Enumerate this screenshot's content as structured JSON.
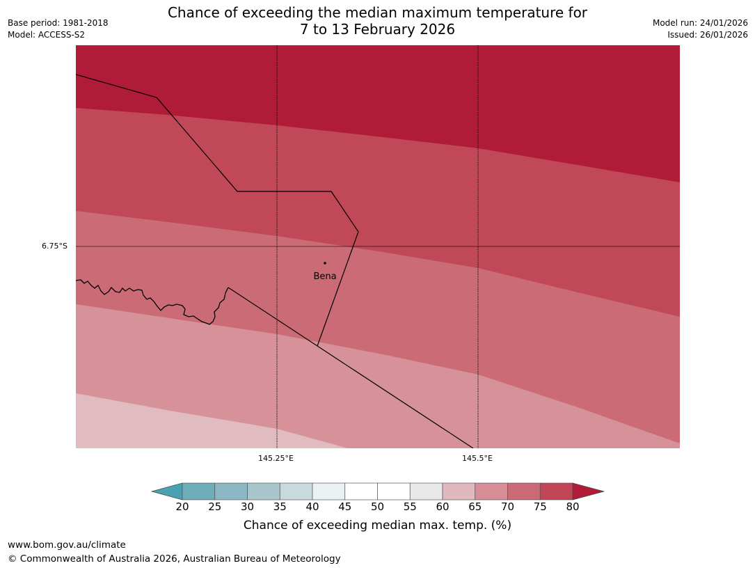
{
  "header": {
    "title_line1": "Chance of exceeding the median maximum temperature for",
    "title_line2": "7 to 13 February 2026",
    "base_period": "Base period: 1981-2018",
    "model": "Model: ACCESS-S2",
    "model_run": "Model run: 24/01/2026",
    "issued": "Issued: 26/01/2026"
  },
  "map": {
    "latitude_label": "6.75°S",
    "longitude_labels": [
      "145.25°E",
      "145.5°E"
    ],
    "place_name": "Bena",
    "colors": {
      "band_80": "#b01c38",
      "band_75": "#c04857",
      "band_70": "#ca6b76",
      "band_65": "#d69199",
      "band_60": "#e0bbbf"
    }
  },
  "colorbar": {
    "ticks": [
      "20",
      "25",
      "30",
      "35",
      "40",
      "45",
      "50",
      "55",
      "60",
      "65",
      "70",
      "75",
      "80"
    ],
    "segment_colors": [
      "#6eaebb",
      "#8bb8c4",
      "#a8c7cd",
      "#c8dadd",
      "#e9f1f3",
      "#ffffff",
      "#ffffff",
      "#e9e9e9",
      "#e1b8bd",
      "#d68d96",
      "#ca6a74",
      "#c04656"
    ],
    "low_extend_color": "#4aa1b1",
    "high_extend_color": "#b01c38",
    "label": "Chance of exceeding median max. temp. (%)"
  },
  "footer": {
    "url": "www.bom.gov.au/climate",
    "copyright": "© Commonwealth of Australia 2026, Australian Bureau of Meteorology"
  }
}
